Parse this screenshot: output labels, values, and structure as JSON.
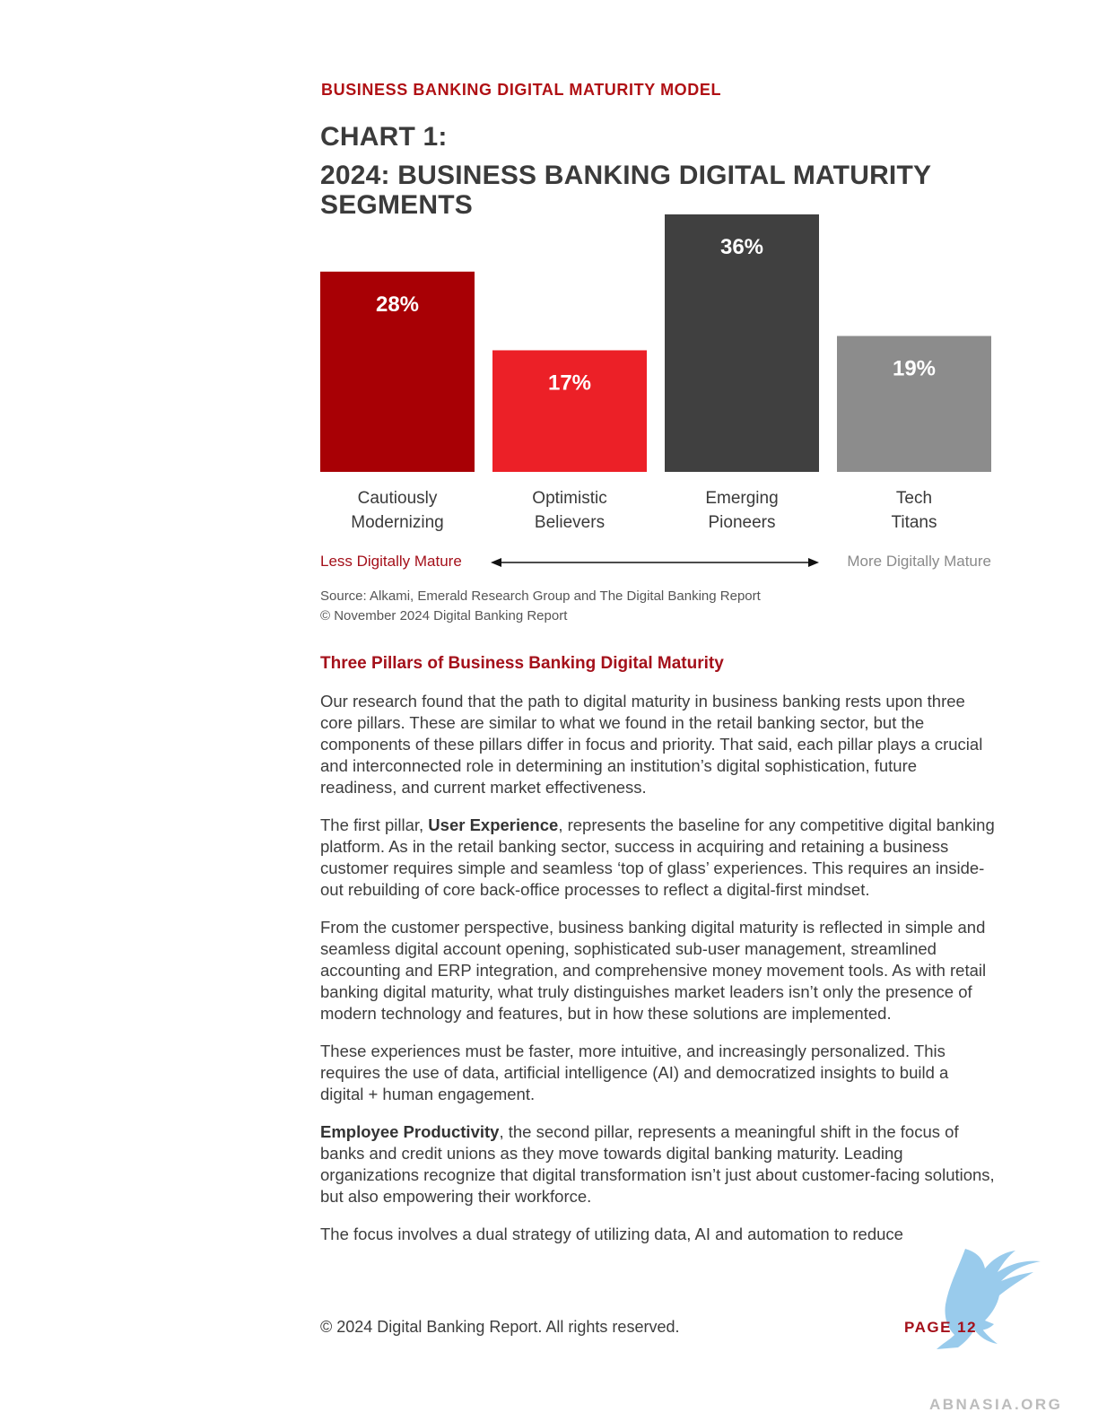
{
  "header": {
    "section_label": "BUSINESS BANKING DIGITAL MATURITY MODEL",
    "chart_title_line1": "CHART 1:",
    "chart_title_line2": "2024: BUSINESS BANKING DIGITAL MATURITY",
    "chart_title_line3": "SEGMENTS"
  },
  "chart_data": {
    "type": "bar",
    "title": "2024: BUSINESS BANKING DIGITAL MATURITY SEGMENTS",
    "categories": [
      [
        "Cautiously",
        "Modernizing"
      ],
      [
        "Optimistic",
        "Believers"
      ],
      [
        "Emerging",
        "Pioneers"
      ],
      [
        "Tech",
        "Titans"
      ]
    ],
    "values": [
      28,
      17,
      36,
      19
    ],
    "data_labels": [
      "28%",
      "17%",
      "36%",
      "19%"
    ],
    "colors": [
      "#a80005",
      "#ec2027",
      "#404040",
      "#8c8c8c"
    ],
    "ylim": [
      0,
      36
    ],
    "grid": false,
    "legend": "none"
  },
  "scale": {
    "less_label": "Less Digitally Mature",
    "more_label": "More Digitally Mature"
  },
  "source": {
    "line1": "Source: Alkami, Emerald Research Group and The Digital Banking Report",
    "line2": "© November 2024 Digital Banking Report"
  },
  "article": {
    "heading": "Three Pillars of Business Banking Digital Maturity",
    "p1": "Our research found that the path to digital maturity in business banking rests upon three core pillars. These are similar to what we found in the retail banking sector, but the components of these pillars differ in focus and priority. That said, each pillar plays a crucial and interconnected role in determining an institution’s digital sophistication, future readiness, and current market effectiveness.",
    "p2_prefix": "The first pillar, ",
    "p2_bold": "User Experience",
    "p2_rest": ", represents the baseline for any competitive digital banking platform. As in the retail banking sector, success in acquiring and retaining a business customer requires simple and seamless ‘top of glass’ experiences. This requires an inside-out rebuilding of core back-office processes to reflect a digital-first mindset.",
    "p3": "From the customer perspective, business banking digital maturity is reflected in simple and seamless digital account opening, sophisticated sub-user management, streamlined accounting and ERP integration, and comprehensive money movement tools. As with retail banking digital maturity, what truly distinguishes market leaders isn’t only the presence of modern technology and features, but in how these solutions are implemented.",
    "p4": "These experiences must be faster, more intuitive, and increasingly personalized. This requires the use of data, artificial intelligence (AI) and democratized insights to build a digital + human engagement.",
    "p5_bold": "Employee Productivity",
    "p5_rest": ", the second pillar, represents a meaningful shift in the focus of banks and credit unions as they move towards digital banking maturity. Leading organizations recognize that digital transformation isn’t just about customer-facing solutions, but also empowering their workforce.",
    "p6": "The focus involves a dual strategy of utilizing data, AI and automation to reduce"
  },
  "footer": {
    "copyright": "© 2024 Digital Banking Report. All rights reserved.",
    "page": "PAGE 12"
  },
  "watermark": {
    "text": "ABNASIA.ORG",
    "icon": "griffin-logo-icon",
    "color": "#8fc6ea"
  }
}
